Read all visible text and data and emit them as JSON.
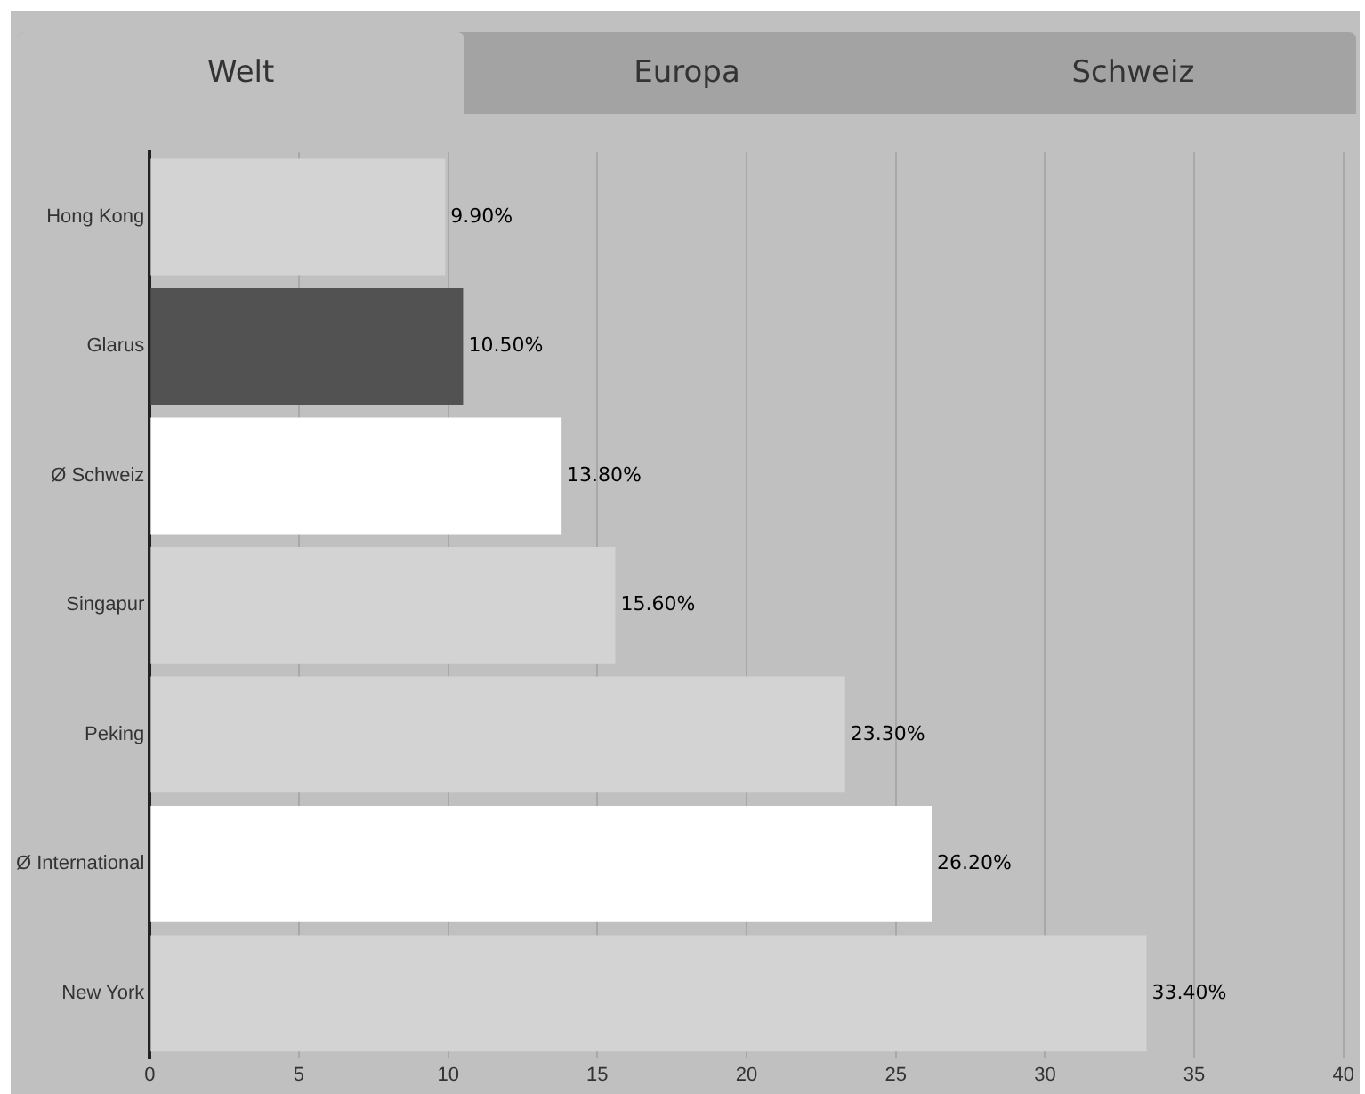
{
  "chart_data": {
    "type": "bar",
    "orientation": "horizontal",
    "categories": [
      "Hong Kong",
      "Glarus",
      "Ø Schweiz",
      "Singapur",
      "Peking",
      "Ø International",
      "New York"
    ],
    "values": [
      9.9,
      10.5,
      13.8,
      15.6,
      23.3,
      26.2,
      33.4
    ],
    "colors": [
      "#d3d3d3",
      "#525252",
      "#ffffff",
      "#d3d3d3",
      "#d3d3d3",
      "#ffffff",
      "#d3d3d3"
    ],
    "value_labels": [
      "9.90%",
      "10.50%",
      "13.80%",
      "15.60%",
      "23.30%",
      "26.20%",
      "33.40%"
    ],
    "xlim": [
      0,
      40
    ],
    "xticks": [
      0,
      5,
      10,
      15,
      20,
      25,
      30,
      35,
      40
    ],
    "grid": "x",
    "legend": false,
    "annotations": [
      "Welt",
      "Europa",
      "Schweiz"
    ]
  }
}
